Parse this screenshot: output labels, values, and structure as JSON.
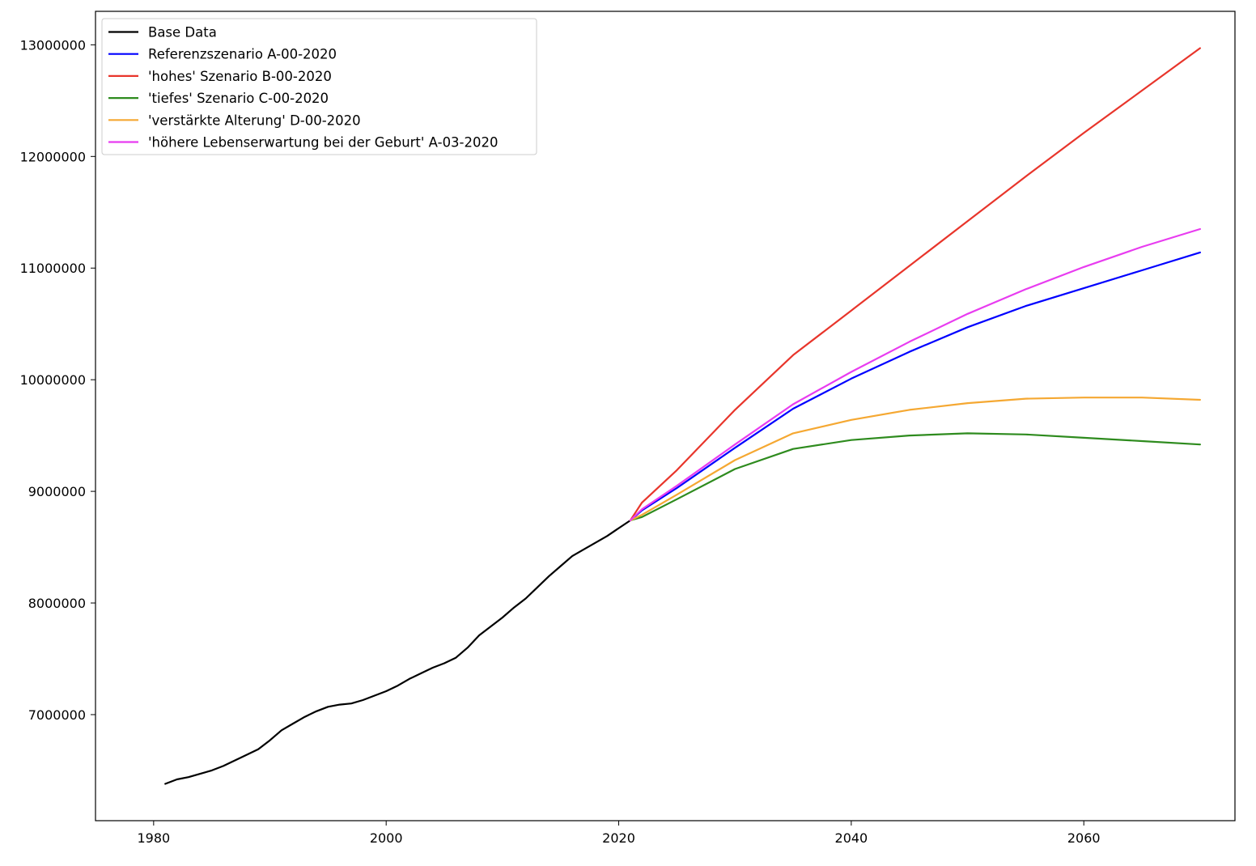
{
  "chart_data": {
    "type": "line",
    "title": "",
    "xlabel": "",
    "ylabel": "",
    "xlim": [
      1975,
      2073
    ],
    "ylim": [
      6050000,
      13300000
    ],
    "x_ticks": [
      1980,
      2000,
      2020,
      2040,
      2060
    ],
    "y_ticks": [
      7000000,
      8000000,
      9000000,
      10000000,
      11000000,
      12000000,
      13000000
    ],
    "grid": false,
    "legend_position": "top-left",
    "series": [
      {
        "name": "Base Data",
        "color": "#000000",
        "x": [
          1981,
          1982,
          1983,
          1984,
          1985,
          1986,
          1987,
          1988,
          1989,
          1990,
          1991,
          1992,
          1993,
          1994,
          1995,
          1996,
          1997,
          1998,
          1999,
          2000,
          2001,
          2002,
          2003,
          2004,
          2005,
          2006,
          2007,
          2008,
          2009,
          2010,
          2011,
          2012,
          2013,
          2014,
          2015,
          2016,
          2017,
          2018,
          2019,
          2020,
          2021
        ],
        "y": [
          6380000,
          6420000,
          6440000,
          6470000,
          6500000,
          6540000,
          6590000,
          6640000,
          6690000,
          6770000,
          6860000,
          6920000,
          6980000,
          7030000,
          7070000,
          7090000,
          7100000,
          7130000,
          7170000,
          7210000,
          7260000,
          7320000,
          7370000,
          7420000,
          7460000,
          7510000,
          7600000,
          7710000,
          7790000,
          7870000,
          7960000,
          8040000,
          8140000,
          8240000,
          8330000,
          8420000,
          8480000,
          8540000,
          8600000,
          8670000,
          8740000
        ]
      },
      {
        "name": "Referenzszenario A-00-2020",
        "color": "#0000ff",
        "x": [
          2021,
          2022,
          2025,
          2030,
          2035,
          2040,
          2045,
          2050,
          2055,
          2060,
          2065,
          2070
        ],
        "y": [
          8740000,
          8830000,
          9030000,
          9390000,
          9740000,
          10010000,
          10250000,
          10470000,
          10660000,
          10820000,
          10980000,
          11140000
        ]
      },
      {
        "name": "'hohes' Szenario B-00-2020",
        "color": "#e8352b",
        "x": [
          2021,
          2022,
          2025,
          2030,
          2035,
          2040,
          2045,
          2050,
          2055,
          2060,
          2065,
          2070
        ],
        "y": [
          8740000,
          8900000,
          9190000,
          9730000,
          10220000,
          10620000,
          11020000,
          11420000,
          11820000,
          12210000,
          12590000,
          12970000
        ]
      },
      {
        "name": "'tiefes' Szenario C-00-2020",
        "color": "#2e8b1e",
        "x": [
          2021,
          2022,
          2025,
          2030,
          2035,
          2040,
          2045,
          2050,
          2055,
          2060,
          2065,
          2070
        ],
        "y": [
          8740000,
          8770000,
          8930000,
          9200000,
          9380000,
          9460000,
          9500000,
          9520000,
          9510000,
          9480000,
          9450000,
          9420000
        ]
      },
      {
        "name": "'verstärkte Alterung' D-00-2020",
        "color": "#f5a832",
        "x": [
          2021,
          2022,
          2025,
          2030,
          2035,
          2040,
          2045,
          2050,
          2055,
          2060,
          2065,
          2070
        ],
        "y": [
          8740000,
          8790000,
          8970000,
          9280000,
          9520000,
          9640000,
          9730000,
          9790000,
          9830000,
          9840000,
          9840000,
          9820000
        ]
      },
      {
        "name": "'höhere Lebenserwartung bei der Geburt' A-03-2020",
        "color": "#e83cf0",
        "x": [
          2021,
          2022,
          2025,
          2030,
          2035,
          2040,
          2045,
          2050,
          2055,
          2060,
          2065,
          2070
        ],
        "y": [
          8740000,
          8840000,
          9050000,
          9420000,
          9780000,
          10070000,
          10340000,
          10590000,
          10810000,
          11010000,
          11190000,
          11350000
        ]
      }
    ]
  }
}
